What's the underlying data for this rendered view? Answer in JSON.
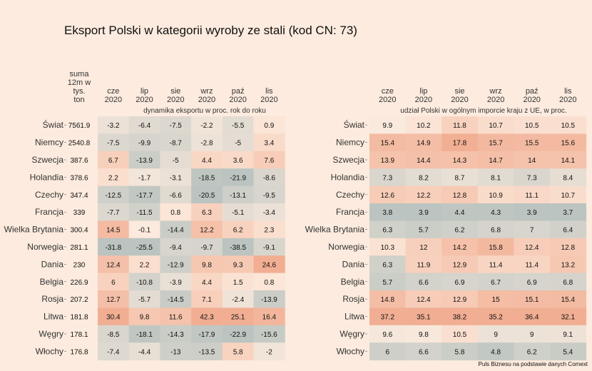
{
  "title": "Eksport Polski w kategorii wyroby ze stali (kod CN: 73)",
  "source": "Puls Biznesu na podstawie danych Comext",
  "chart_data": [
    {
      "type": "heatmap",
      "subtitle": "dynamika eksportu w proc. rok do roku",
      "sum_header": [
        "suma",
        "12m w",
        "tys.",
        "ton"
      ],
      "columns": [
        [
          "cze",
          "2020"
        ],
        [
          "lip",
          "2020"
        ],
        [
          "sie",
          "2020"
        ],
        [
          "wrz",
          "2020"
        ],
        [
          "paź",
          "2020"
        ],
        [
          "lis",
          "2020"
        ]
      ],
      "rows": [
        "Świat",
        "Niemcy",
        "Szwecja",
        "Holandia",
        "Czechy",
        "Francja",
        "Wielka Brytania",
        "Norwegia",
        "Dania",
        "Belgia",
        "Rosja",
        "Litwa",
        "Węgry",
        "Włochy"
      ],
      "sum": [
        "7561.9",
        "2540.8",
        "387.6",
        "378.6",
        "347.4",
        "339",
        "300.4",
        "281.1",
        "230",
        "226.9",
        "207.2",
        "181.8",
        "178.1",
        "176.8"
      ],
      "values": [
        [
          -3.2,
          -6.4,
          -7.5,
          -2.2,
          -5.5,
          0.9
        ],
        [
          -7.5,
          -9.9,
          -8.7,
          -2.8,
          -5,
          3.4
        ],
        [
          6.7,
          -13.9,
          -5,
          4.4,
          3.6,
          7.6
        ],
        [
          2.2,
          -1.7,
          -3.1,
          -18.5,
          -21.9,
          -8.6
        ],
        [
          -12.5,
          -17.7,
          -6.6,
          -20.5,
          -13.1,
          -9.5
        ],
        [
          -7.7,
          -11.5,
          0.8,
          6.3,
          -5.1,
          -3.4
        ],
        [
          14.5,
          -0.1,
          -14.4,
          12.2,
          6.2,
          2.3
        ],
        [
          -31.8,
          -25.5,
          -9.4,
          -9.7,
          -38.5,
          -9.1
        ],
        [
          12.4,
          2.2,
          -12.9,
          9.8,
          9.3,
          24.6
        ],
        [
          6,
          -10.8,
          -3.9,
          4.4,
          1.5,
          0.8
        ],
        [
          12.7,
          -5.7,
          -14.5,
          7.1,
          -2.4,
          -13.9
        ],
        [
          30.4,
          9.8,
          11.6,
          42.3,
          25.1,
          16.4
        ],
        [
          -8.5,
          -18.1,
          -14.3,
          -17.9,
          -22.9,
          -15.6
        ],
        [
          -7.4,
          -4.4,
          -13,
          -13.5,
          5.8,
          -2
        ]
      ]
    },
    {
      "type": "heatmap",
      "subtitle": "udział Polski w ogólnym imporcie kraju z UE, w proc.",
      "columns": [
        [
          "cze",
          "2020"
        ],
        [
          "lip",
          "2020"
        ],
        [
          "sie",
          "2020"
        ],
        [
          "wrz",
          "2020"
        ],
        [
          "paź",
          "2020"
        ],
        [
          "lis",
          "2020"
        ]
      ],
      "rows": [
        "Świat",
        "Niemcy",
        "Szwecja",
        "Holandia",
        "Czechy",
        "Francja",
        "Wielka Brytania",
        "Norwegia",
        "Dania",
        "Belgia",
        "Rosja",
        "Litwa",
        "Węgry",
        "Włochy"
      ],
      "values": [
        [
          9.9,
          10.2,
          11.8,
          10.7,
          10.5,
          10.5
        ],
        [
          15.4,
          14.9,
          17.8,
          15.7,
          15.5,
          15.6
        ],
        [
          13.9,
          14.4,
          14.3,
          14.7,
          14,
          14.1
        ],
        [
          7.3,
          8.2,
          8.7,
          8.1,
          7.3,
          8.4
        ],
        [
          12.6,
          12.2,
          12.8,
          10.9,
          11.1,
          10.7
        ],
        [
          3.8,
          3.9,
          4.4,
          4.3,
          3.9,
          3.7
        ],
        [
          6.3,
          5.7,
          6.2,
          6.8,
          7,
          6.4
        ],
        [
          10.3,
          12,
          14.2,
          15.8,
          12.4,
          12.8
        ],
        [
          6.3,
          11.9,
          12.9,
          11.4,
          11.4,
          13.2
        ],
        [
          5.7,
          6.6,
          6.9,
          6.7,
          6.9,
          6.8
        ],
        [
          14.8,
          12.4,
          12.9,
          15,
          15.1,
          15.4
        ],
        [
          37.2,
          35.1,
          38.2,
          35.2,
          36.4,
          32.1
        ],
        [
          9.6,
          9.8,
          10.5,
          9,
          9,
          9.1
        ],
        [
          6,
          6.6,
          5.8,
          4.8,
          6.2,
          5.4
        ]
      ]
    }
  ],
  "colors": {
    "background": "#fcebde",
    "low": "#b8c2be",
    "mid": "#fcebde",
    "high": "#f0a789"
  }
}
